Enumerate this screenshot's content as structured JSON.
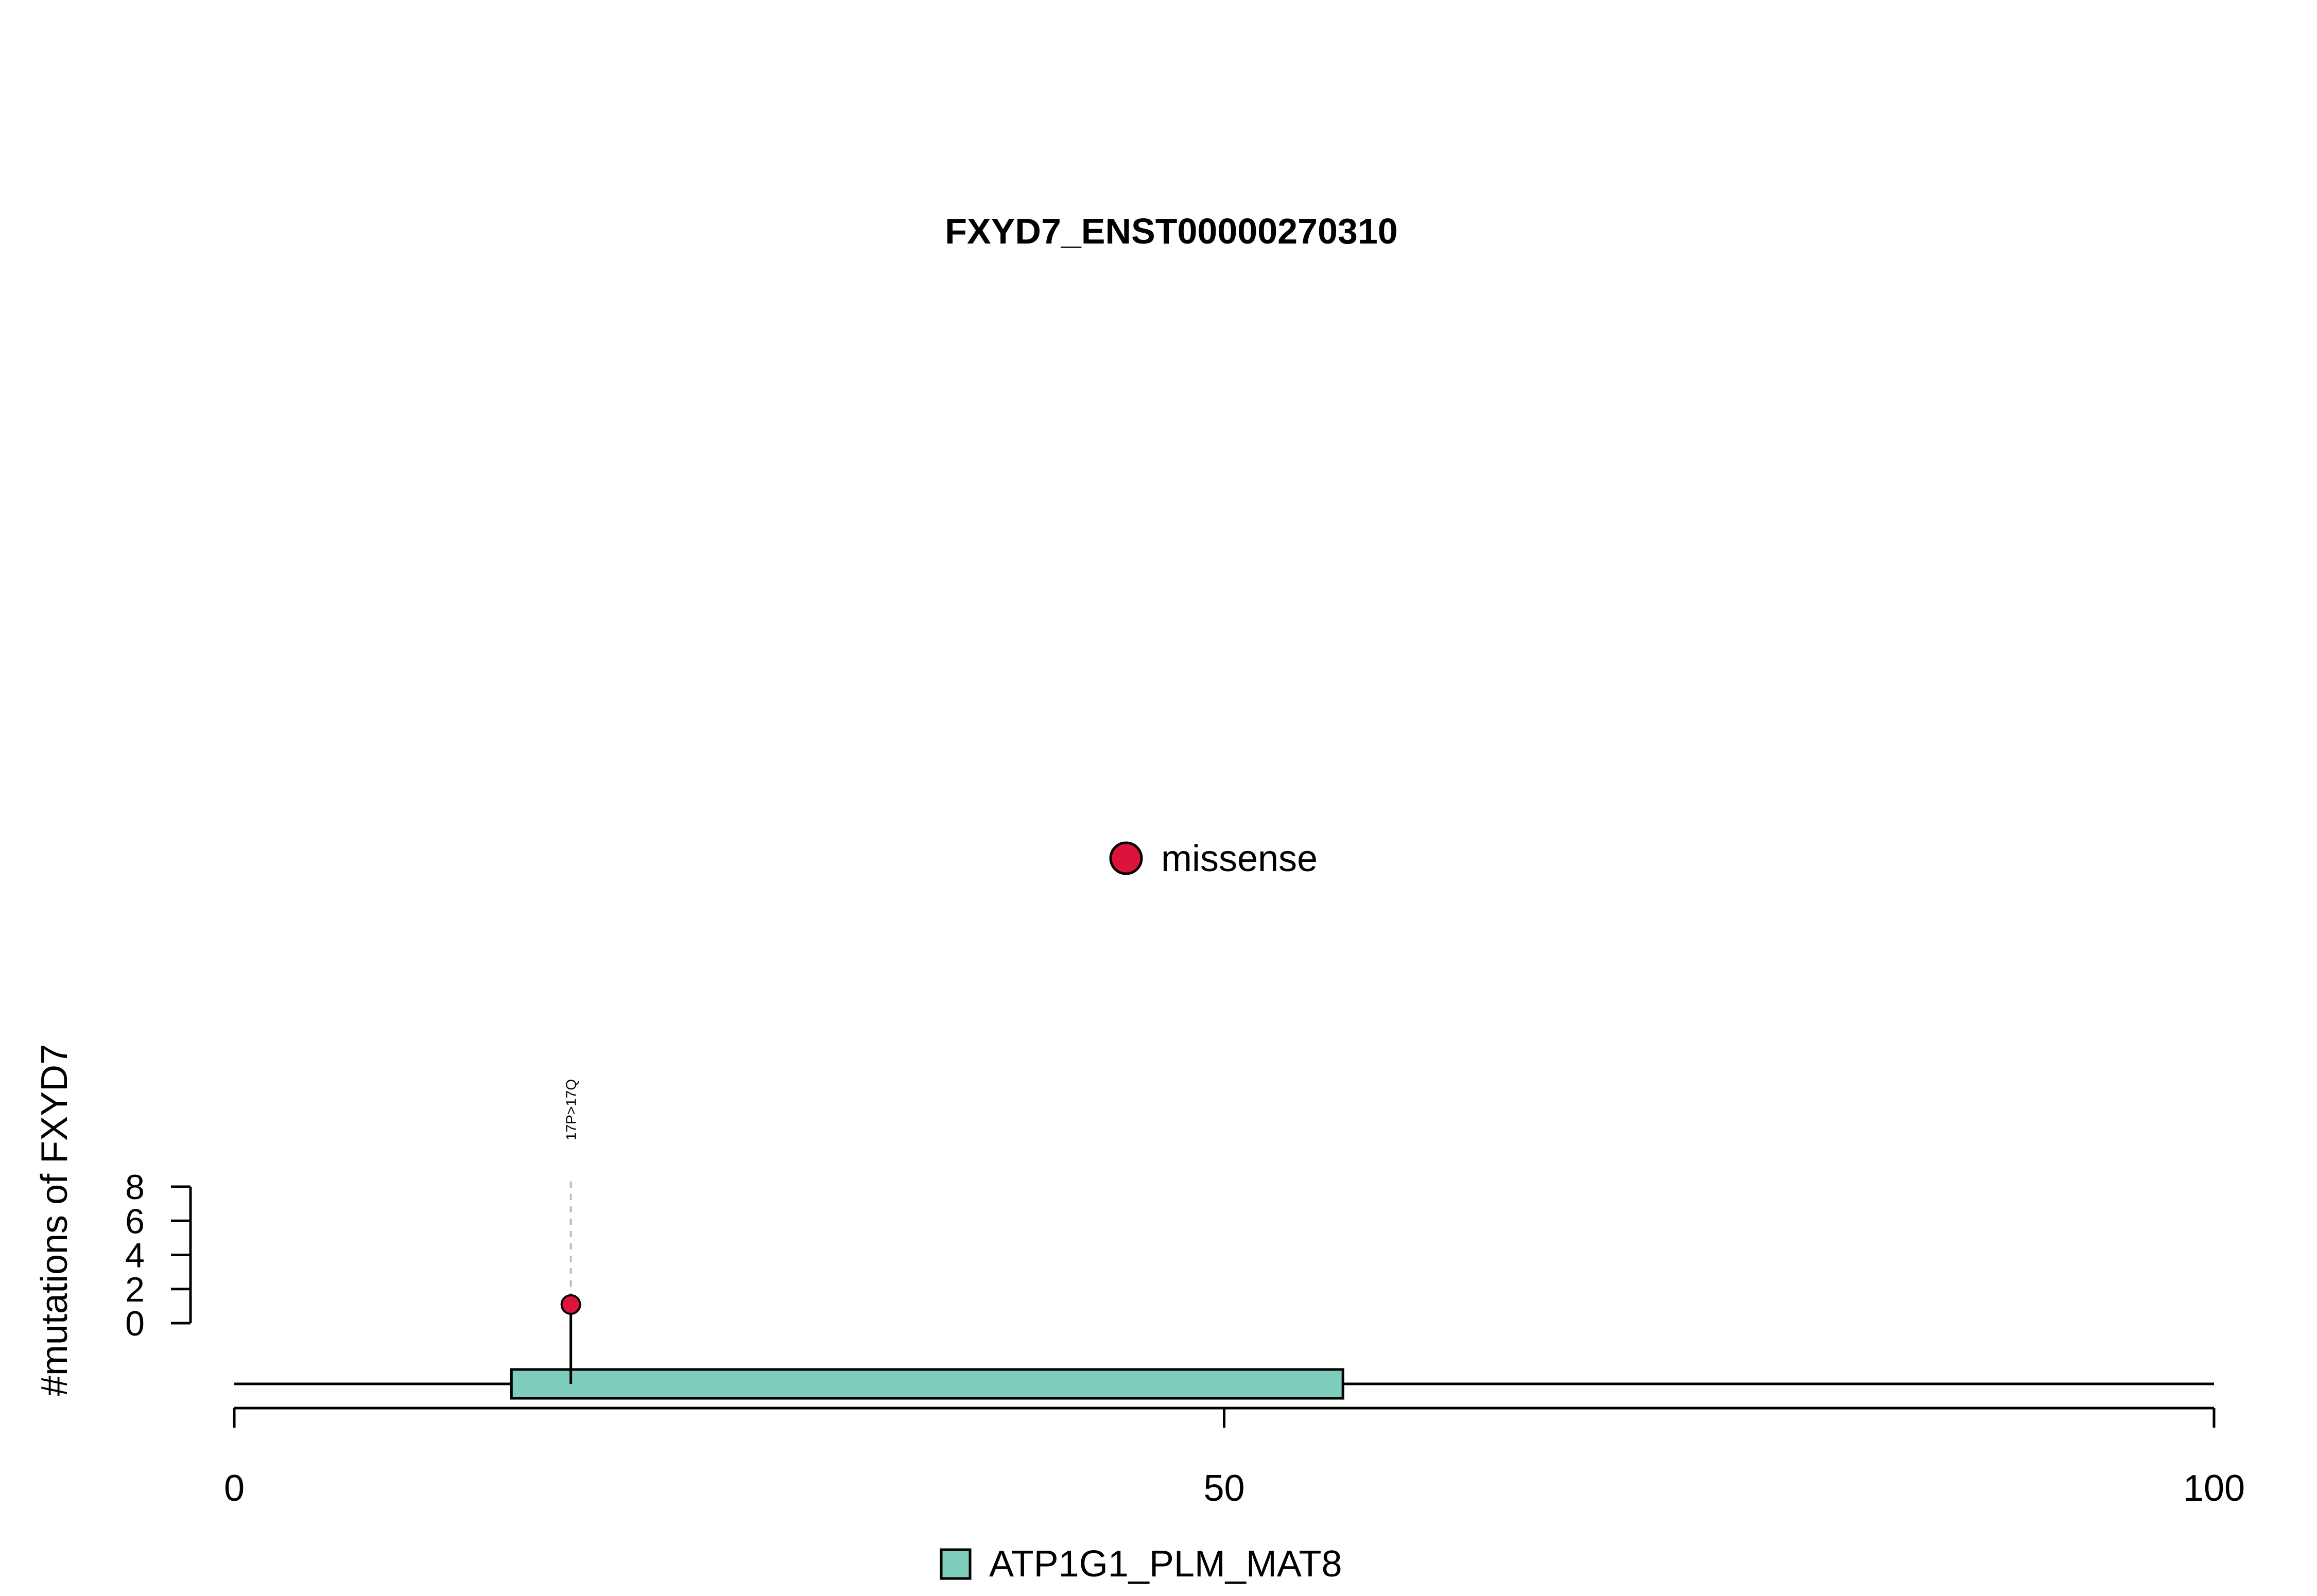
{
  "chart_data": {
    "type": "lollipop",
    "title": "FXYD7_ENST00000270310",
    "xlabel": "",
    "ylabel": "#mutations of FXYD7",
    "xlim": [
      0,
      100
    ],
    "x_ticks": [
      0,
      50,
      100
    ],
    "ylim": [
      0,
      8
    ],
    "y_ticks": [
      0,
      2,
      4,
      6,
      8
    ],
    "protein_length": 100,
    "domains": [
      {
        "name": "ATP1G1_PLM_MAT8",
        "start": 14,
        "end": 56,
        "color": "#7fcdbb"
      }
    ],
    "mutations": [
      {
        "position": 17,
        "count": 1,
        "label": "17P>17Q",
        "type": "missense",
        "color": "#dc143c"
      }
    ],
    "mutation_legend": [
      {
        "label": "missense",
        "color": "#dc143c"
      }
    ],
    "domain_legend": [
      {
        "label": "ATP1G1_PLM_MAT8",
        "color": "#7fcdbb"
      }
    ]
  }
}
